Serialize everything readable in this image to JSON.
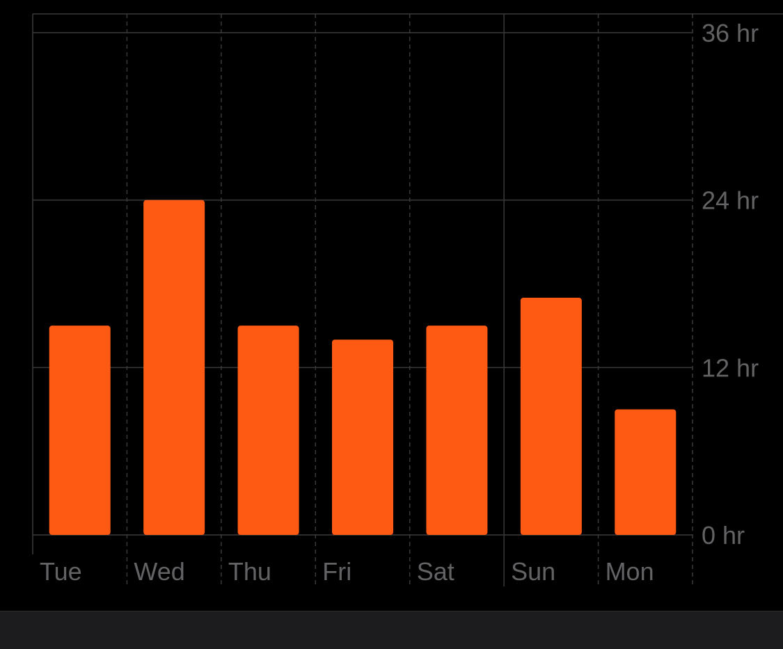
{
  "theme": {
    "background": "#000000",
    "bar_color": "#ff5a14",
    "grid_color": "#3a3a3c",
    "label_color": "#636366",
    "bottom_bar_color": "#1c1c1e"
  },
  "chart_data": {
    "type": "bar",
    "categories": [
      "Tue",
      "Wed",
      "Thu",
      "Fri",
      "Sat",
      "Sun",
      "Mon"
    ],
    "series": [
      {
        "values": [
          15,
          24,
          15,
          14,
          15,
          17,
          9
        ]
      }
    ],
    "y_axis": {
      "ticks": [
        0,
        12,
        24,
        36
      ],
      "tick_labels": [
        "0 hr",
        "12 hr",
        "24 hr",
        "36 hr"
      ],
      "ylim": [
        0,
        36
      ],
      "position": "right"
    },
    "title": "",
    "xlabel": "",
    "ylabel": "",
    "grid": true,
    "legend": "none"
  }
}
